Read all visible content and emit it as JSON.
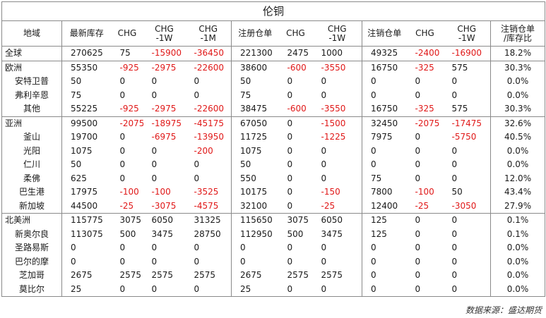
{
  "title": "伦铜",
  "headers": [
    {
      "line1": "地域",
      "line2": ""
    },
    {
      "line1": "最新库存",
      "line2": ""
    },
    {
      "line1": "CHG",
      "line2": ""
    },
    {
      "line1": "CHG",
      "line2": "-1W"
    },
    {
      "line1": "CHG",
      "line2": "-1M"
    },
    {
      "line1": "注册仓单",
      "line2": ""
    },
    {
      "line1": "CHG",
      "line2": ""
    },
    {
      "line1": "CHG",
      "line2": "-1W"
    },
    {
      "line1": "注销仓单",
      "line2": ""
    },
    {
      "line1": "CHG",
      "line2": ""
    },
    {
      "line1": "CHG",
      "line2": "-1W"
    },
    {
      "line1": "注销仓单",
      "line2": "/库存比"
    }
  ],
  "rows": [
    {
      "region": "全球",
      "level": 0,
      "group_start": true,
      "cells": [
        "270625",
        "75",
        "-15900",
        "-36450",
        "221300",
        "2475",
        "1000",
        "49325",
        "-2400",
        "-16900",
        "18.2%"
      ]
    },
    {
      "region": "欧洲",
      "level": 0,
      "group_start": true,
      "cells": [
        "55350",
        "-925",
        "-2975",
        "-22600",
        "38600",
        "-600",
        "-3550",
        "16750",
        "-325",
        "575",
        "30.3%"
      ]
    },
    {
      "region": "安特卫普",
      "level": 1,
      "group_start": false,
      "cells": [
        "50",
        "0",
        "0",
        "0",
        "50",
        "0",
        "0",
        "0",
        "0",
        "0",
        "0.0%"
      ]
    },
    {
      "region": "弗利辛恩",
      "level": 1,
      "group_start": false,
      "cells": [
        "75",
        "0",
        "0",
        "0",
        "75",
        "0",
        "0",
        "0",
        "0",
        "0",
        "0.0%"
      ]
    },
    {
      "region": "其他",
      "level": 1,
      "group_start": false,
      "cells": [
        "55225",
        "-925",
        "-2975",
        "-22600",
        "38475",
        "-600",
        "-3550",
        "16750",
        "-325",
        "575",
        "30.3%"
      ]
    },
    {
      "region": "亚洲",
      "level": 0,
      "group_start": true,
      "cells": [
        "99500",
        "-2075",
        "-18975",
        "-45175",
        "67050",
        "0",
        "-1500",
        "32450",
        "-2075",
        "-17475",
        "32.6%"
      ]
    },
    {
      "region": "釜山",
      "level": 1,
      "group_start": false,
      "cells": [
        "19700",
        "0",
        "-6975",
        "-13950",
        "11725",
        "0",
        "-1225",
        "7975",
        "0",
        "-5750",
        "40.5%"
      ]
    },
    {
      "region": "光阳",
      "level": 1,
      "group_start": false,
      "cells": [
        "1075",
        "0",
        "0",
        "-200",
        "1075",
        "0",
        "0",
        "0",
        "0",
        "0",
        "0.0%"
      ]
    },
    {
      "region": "仁川",
      "level": 1,
      "group_start": false,
      "cells": [
        "50",
        "0",
        "0",
        "0",
        "50",
        "0",
        "0",
        "0",
        "0",
        "0",
        "0.0%"
      ]
    },
    {
      "region": "柔佛",
      "level": 1,
      "group_start": false,
      "cells": [
        "625",
        "0",
        "0",
        "0",
        "550",
        "0",
        "0",
        "75",
        "0",
        "0",
        "12.0%"
      ]
    },
    {
      "region": "巴生港",
      "level": 1,
      "group_start": false,
      "cells": [
        "17975",
        "-100",
        "-100",
        "-3525",
        "10175",
        "0",
        "-150",
        "7800",
        "-100",
        "50",
        "43.4%"
      ]
    },
    {
      "region": "新加坡",
      "level": 1,
      "group_start": false,
      "cells": [
        "44500",
        "-25",
        "-3075",
        "-4575",
        "32100",
        "0",
        "-25",
        "12400",
        "-25",
        "-3050",
        "27.9%"
      ]
    },
    {
      "region": "北美洲",
      "level": 0,
      "group_start": true,
      "cells": [
        "115775",
        "3075",
        "6050",
        "31325",
        "115650",
        "3075",
        "6050",
        "125",
        "0",
        "0",
        "0.1%"
      ]
    },
    {
      "region": "新奥尔良",
      "level": 1,
      "group_start": false,
      "cells": [
        "113075",
        "500",
        "3475",
        "28750",
        "112950",
        "500",
        "3475",
        "125",
        "0",
        "0",
        "0.1%"
      ]
    },
    {
      "region": "圣路易斯",
      "level": 1,
      "group_start": false,
      "cells": [
        "0",
        "0",
        "0",
        "0",
        "0",
        "0",
        "0",
        "0",
        "0",
        "0",
        "0.0%"
      ]
    },
    {
      "region": "巴尔的摩",
      "level": 1,
      "group_start": false,
      "cells": [
        "0",
        "0",
        "0",
        "0",
        "0",
        "0",
        "0",
        "0",
        "0",
        "0",
        "0.0%"
      ]
    },
    {
      "region": "芝加哥",
      "level": 1,
      "group_start": false,
      "cells": [
        "2675",
        "2575",
        "2575",
        "2575",
        "2675",
        "2575",
        "2575",
        "0",
        "0",
        "0",
        "0.0%"
      ]
    },
    {
      "region": "莫比尔",
      "level": 1,
      "group_start": false,
      "cells": [
        "25",
        "0",
        "0",
        "0",
        "25",
        "0",
        "0",
        "0",
        "0",
        "0",
        "0.0%"
      ]
    }
  ],
  "source": "数据来源：盛达期货",
  "colors": {
    "negative": "#e01818",
    "text": "#1a1a1a",
    "border": "#8a8a8a"
  }
}
